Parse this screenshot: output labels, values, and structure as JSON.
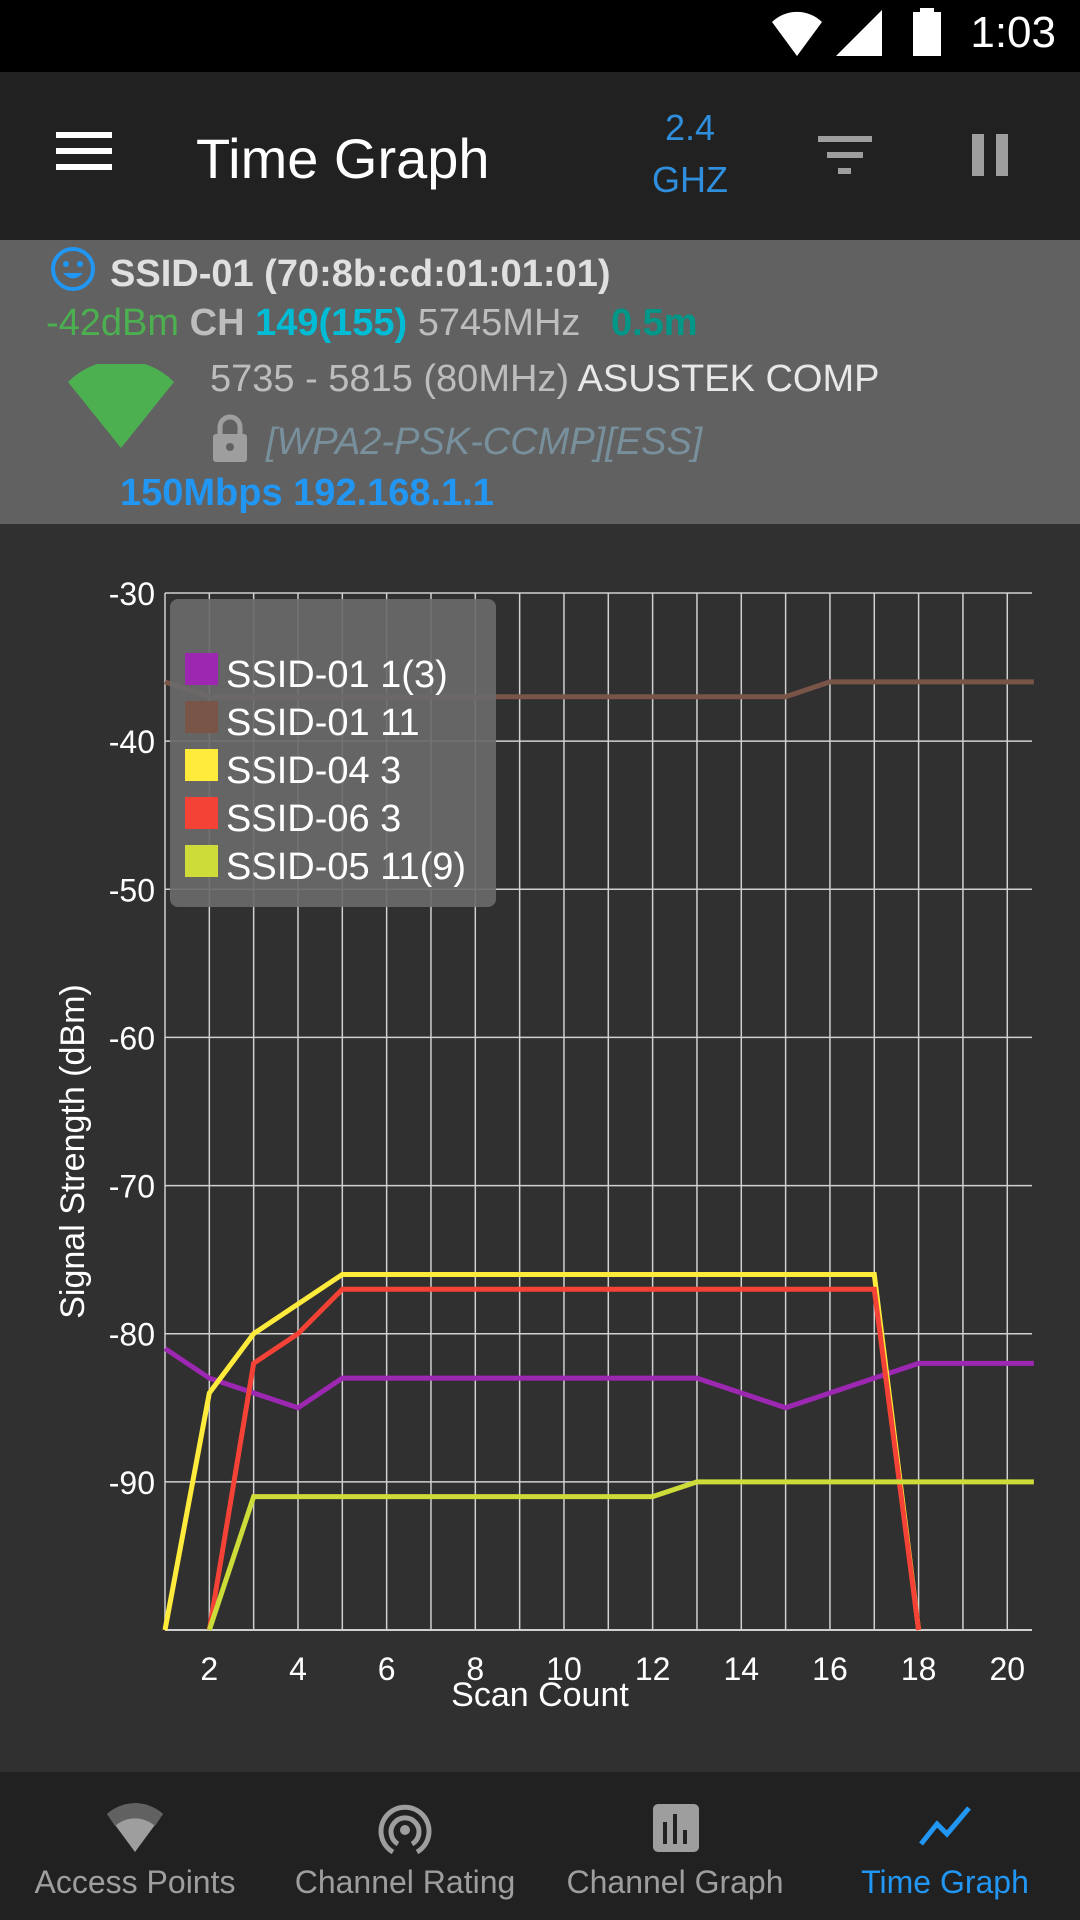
{
  "status_bar": {
    "time": "1:03",
    "icons": [
      "wifi-icon",
      "cellular-signal-icon",
      "battery-icon"
    ]
  },
  "app_bar": {
    "title": "Time Graph",
    "band_line1": "2.4",
    "band_line2": "GHZ",
    "icons": [
      "menu-icon",
      "filter-icon",
      "pause-icon"
    ]
  },
  "access_point": {
    "ssid_line": "SSID-01 (70:8b:cd:01:01:01)",
    "signal": "-42dBm",
    "ch_label": "CH",
    "channel": "149(155)",
    "frequency": "5745MHz",
    "distance": "0.5m",
    "range": "5735 - 5815 (80MHz)",
    "vendor": "ASUSTEK COMP",
    "security": "[WPA2-PSK-CCMP][ESS]",
    "link": "150Mbps 192.168.1.1",
    "colors": {
      "signal": "#4caf50",
      "channel": "#00bcd4",
      "distance": "#009688",
      "link": "#2196f3",
      "wifi_icon": "#4caf50"
    }
  },
  "chart_data": {
    "type": "line",
    "title": "",
    "xlabel": "Scan Count",
    "ylabel": "Signal Strength (dBm)",
    "xlim": [
      1,
      20.6
    ],
    "ylim": [
      -100,
      -30
    ],
    "x_ticks": [
      2,
      4,
      6,
      8,
      10,
      12,
      14,
      16,
      18,
      20
    ],
    "y_ticks": [
      -30,
      -40,
      -50,
      -60,
      -70,
      -80,
      -90
    ],
    "grid": true,
    "legend_position": "top-left",
    "series": [
      {
        "name": "SSID-01 1(3)",
        "color": "#9c27b0",
        "x": [
          1,
          2,
          3,
          4,
          5,
          6,
          7,
          8,
          9,
          10,
          11,
          12,
          13,
          14,
          15,
          16,
          17,
          18,
          19,
          20,
          20.6
        ],
        "values": [
          -81,
          -83,
          -84,
          -85,
          -83,
          -83,
          -83,
          -83,
          -83,
          -83,
          -83,
          -83,
          -83,
          -84,
          -85,
          -84,
          -83,
          -82,
          -82,
          -82,
          -82
        ]
      },
      {
        "name": "SSID-01 11",
        "color": "#795548",
        "x": [
          1,
          2,
          3,
          4,
          5,
          6,
          7,
          8,
          9,
          10,
          11,
          12,
          13,
          14,
          15,
          16,
          17,
          18,
          19,
          20,
          20.6
        ],
        "values": [
          -36,
          -37,
          -37,
          -37,
          -37,
          -37,
          -37,
          -37,
          -37,
          -37,
          -37,
          -37,
          -37,
          -37,
          -37,
          -36,
          -36,
          -36,
          -36,
          -36,
          -36
        ]
      },
      {
        "name": "SSID-04 3",
        "color": "#ffeb3b",
        "x": [
          1,
          2,
          3,
          4,
          5,
          6,
          7,
          8,
          9,
          10,
          11,
          12,
          13,
          14,
          15,
          16,
          17,
          18
        ],
        "values": [
          -100,
          -84,
          -80,
          -78,
          -76,
          -76,
          -76,
          -76,
          -76,
          -76,
          -76,
          -76,
          -76,
          -76,
          -76,
          -76,
          -76,
          -100
        ]
      },
      {
        "name": "SSID-06 3",
        "color": "#f44336",
        "x": [
          2,
          3,
          4,
          5,
          6,
          7,
          8,
          9,
          10,
          11,
          12,
          13,
          14,
          15,
          16,
          17,
          18
        ],
        "values": [
          -100,
          -82,
          -80,
          -77,
          -77,
          -77,
          -77,
          -77,
          -77,
          -77,
          -77,
          -77,
          -77,
          -77,
          -77,
          -77,
          -100
        ]
      },
      {
        "name": "SSID-05 11(9)",
        "color": "#cddc39",
        "x": [
          2,
          3,
          4,
          5,
          6,
          7,
          8,
          9,
          10,
          11,
          12,
          13,
          14,
          15,
          16,
          17,
          18,
          19,
          20,
          20.6
        ],
        "values": [
          -100,
          -91,
          -91,
          -91,
          -91,
          -91,
          -91,
          -91,
          -91,
          -91,
          -91,
          -90,
          -90,
          -90,
          -90,
          -90,
          -90,
          -90,
          -90,
          -90
        ]
      }
    ]
  },
  "bottom_nav": {
    "items": [
      {
        "label": "Access Points",
        "icon": "wifi-icon",
        "active": false
      },
      {
        "label": "Channel Rating",
        "icon": "signal-rating-icon",
        "active": false
      },
      {
        "label": "Channel Graph",
        "icon": "bar-chart-icon",
        "active": false
      },
      {
        "label": "Time Graph",
        "icon": "timeline-icon",
        "active": true
      }
    ],
    "active_color": "#2196f3",
    "inactive_color": "#9e9e9e"
  }
}
